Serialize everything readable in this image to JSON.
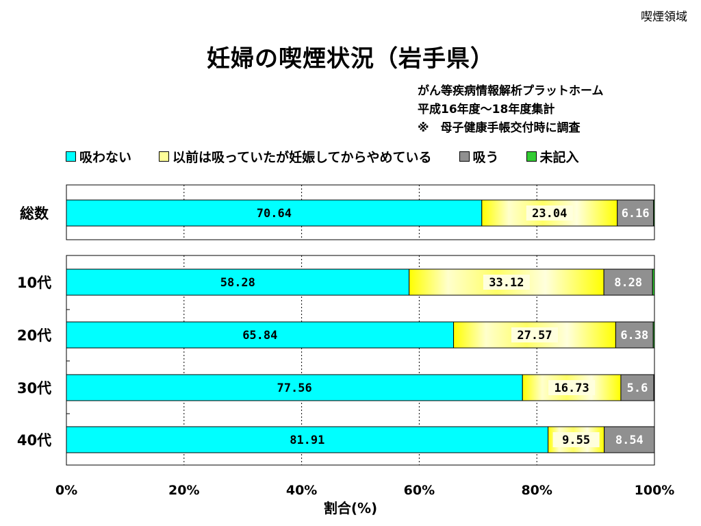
{
  "corner_label": "喫煙領域",
  "title": "妊婦の喫煙状況（岩手県）",
  "notes": [
    "がん等疾病情報解析プラットホーム",
    "平成16年度〜18年度集計",
    "※　母子健康手帳交付時に調査"
  ],
  "colors": {
    "never": "#00ffff",
    "quit": "#ffff66",
    "smoke": "#909090",
    "unknown": "#33cc33"
  },
  "chart_data": {
    "type": "bar",
    "orientation": "horizontal",
    "stacked": true,
    "categories": [
      "総数",
      "10代",
      "20代",
      "30代",
      "40代"
    ],
    "series": [
      {
        "name": "吸わない",
        "values": [
          70.64,
          58.28,
          65.84,
          77.56,
          81.91
        ]
      },
      {
        "name": "以前は吸っていたが妊娠してからやめている",
        "values": [
          23.04,
          33.12,
          27.57,
          16.73,
          9.55
        ]
      },
      {
        "name": "吸う",
        "values": [
          6.16,
          8.28,
          6.38,
          5.6,
          8.54
        ]
      },
      {
        "name": "未記入",
        "values": [
          0.16,
          0.32,
          0.21,
          0.11,
          0
        ]
      }
    ],
    "data_labels": [
      [
        "70.64",
        "23.04",
        "6.16"
      ],
      [
        "58.28",
        "33.12",
        "8.28"
      ],
      [
        "65.84",
        "27.57",
        "6.38"
      ],
      [
        "77.56",
        "16.73",
        "5.6"
      ],
      [
        "81.91",
        "9.55",
        "8.54"
      ]
    ],
    "xticks": [
      "0%",
      "20%",
      "40%",
      "60%",
      "80%",
      "100%"
    ],
    "xlim": [
      0,
      100
    ],
    "xlabel": "割合(%)",
    "ylabel": "",
    "legend_position": "top",
    "grid": "vertical dotted"
  }
}
